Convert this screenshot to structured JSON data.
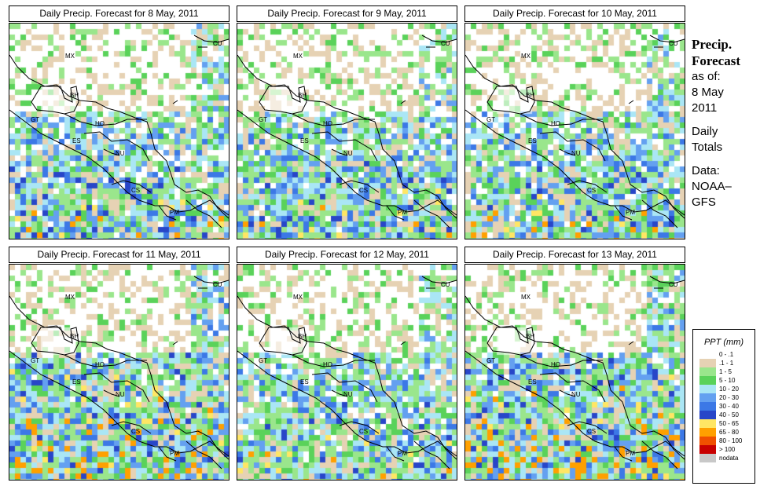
{
  "panels": [
    {
      "title": "Daily Precip. Forecast for  8 May, 2011"
    },
    {
      "title": "Daily Precip. Forecast for  9 May, 2011"
    },
    {
      "title": "Daily Precip. Forecast for  10 May, 2011"
    },
    {
      "title": "Daily Precip. Forecast for  11 May, 2011"
    },
    {
      "title": "Daily Precip. Forecast for  12 May, 2011"
    },
    {
      "title": "Daily Precip. Forecast for  13 May, 2011"
    }
  ],
  "country_labels": {
    "mx": "MX",
    "cu": "CU",
    "bh": "BH",
    "gt": "GT",
    "ho": "HO",
    "es": "ES",
    "nu": "NU",
    "cs": "CS",
    "pm": "PM"
  },
  "side": {
    "title_line1": "Precip.",
    "title_line2": "Forecast",
    "asof_label": "as of:",
    "date_line1": "8 May",
    "date_line2": "2011",
    "totals_line1": "Daily",
    "totals_line2": "Totals",
    "source_line1": "Data:",
    "source_line2": "NOAA–",
    "source_line3": "GFS"
  },
  "legend": {
    "title": "PPT (mm)",
    "items": [
      {
        "label": "0 - .1",
        "color": "#ffffff"
      },
      {
        "label": ".1 - 1",
        "color": "#e6d2b4"
      },
      {
        "label": "1 - 5",
        "color": "#9ae68c"
      },
      {
        "label": "5 - 10",
        "color": "#5ad25a"
      },
      {
        "label": "10 - 20",
        "color": "#aae6f5"
      },
      {
        "label": "20 - 30",
        "color": "#64a0f0"
      },
      {
        "label": "30 - 40",
        "color": "#3c78e6"
      },
      {
        "label": "40 - 50",
        "color": "#2846c8"
      },
      {
        "label": "50 - 65",
        "color": "#ffe664"
      },
      {
        "label": "65 - 80",
        "color": "#ffa000"
      },
      {
        "label": "80 - 100",
        "color": "#f05000"
      },
      {
        "label": "> 100",
        "color": "#c80000"
      },
      {
        "label": "nodata",
        "color": "#c8c8c8"
      }
    ]
  }
}
